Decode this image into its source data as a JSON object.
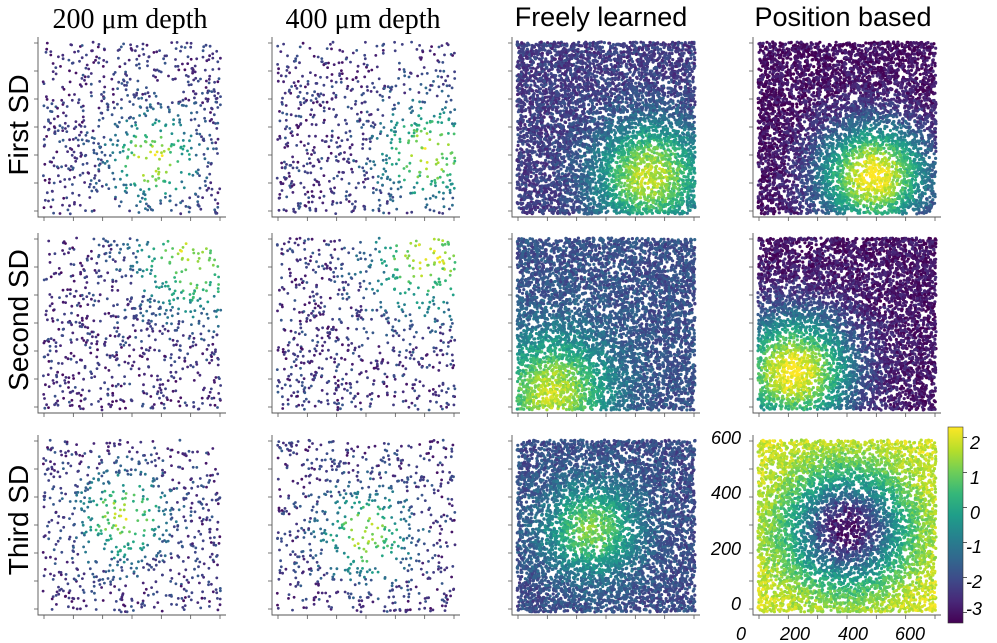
{
  "figure": {
    "column_titles": [
      "200 μm depth",
      "400 μm depth",
      "Freely learned",
      "Position based"
    ],
    "row_labels": [
      "First SD",
      "Second SD",
      "Third SD"
    ]
  },
  "chart_data": [
    {
      "type": "scatter",
      "id": "r1c1",
      "row": "First SD",
      "column": "200 μm depth",
      "n_points": 720,
      "color_by": "value",
      "pattern": "blob",
      "peak_xy": [
        0.62,
        0.32
      ],
      "spread": 0.22,
      "background": -2.4,
      "peak": 2.0
    },
    {
      "type": "scatter",
      "id": "r1c2",
      "row": "First SD",
      "column": "400 μm depth",
      "n_points": 720,
      "color_by": "value",
      "pattern": "blob",
      "peak_xy": [
        0.85,
        0.35
      ],
      "spread": 0.25,
      "background": -2.4,
      "peak": 1.8
    },
    {
      "type": "scatter",
      "id": "r1c3",
      "row": "First SD",
      "column": "Freely learned",
      "n_points": 5600,
      "color_by": "value",
      "pattern": "blob",
      "peak_xy": [
        0.75,
        0.22
      ],
      "spread": 0.3,
      "background": -2.3,
      "peak": 1.8
    },
    {
      "type": "scatter",
      "id": "r1c4",
      "row": "First SD",
      "column": "Position based",
      "n_points": 5600,
      "color_by": "value",
      "pattern": "blob",
      "peak_xy": [
        0.65,
        0.22
      ],
      "spread": 0.3,
      "background": -3.1,
      "peak": 2.4
    },
    {
      "type": "scatter",
      "id": "r2c1",
      "row": "Second SD",
      "column": "200 μm depth",
      "n_points": 720,
      "color_by": "value",
      "pattern": "blob",
      "peak_xy": [
        0.85,
        0.88
      ],
      "spread": 0.3,
      "background": -2.5,
      "peak": 1.8
    },
    {
      "type": "scatter",
      "id": "r2c2",
      "row": "Second SD",
      "column": "400 μm depth",
      "n_points": 720,
      "color_by": "value",
      "pattern": "blob",
      "peak_xy": [
        0.85,
        0.9
      ],
      "spread": 0.3,
      "background": -2.4,
      "peak": 1.8
    },
    {
      "type": "scatter",
      "id": "r2c3",
      "row": "Second SD",
      "column": "Freely learned",
      "n_points": 5600,
      "color_by": "value",
      "pattern": "blob",
      "peak_xy": [
        0.2,
        0.1
      ],
      "spread": 0.32,
      "background": -1.9,
      "peak": 1.8
    },
    {
      "type": "scatter",
      "id": "r2c4",
      "row": "Second SD",
      "column": "Position based",
      "n_points": 5600,
      "color_by": "value",
      "pattern": "blob",
      "peak_xy": [
        0.2,
        0.22
      ],
      "spread": 0.32,
      "background": -3.0,
      "peak": 2.4
    },
    {
      "type": "scatter",
      "id": "r3c1",
      "row": "Third SD",
      "column": "200 μm depth",
      "n_points": 720,
      "color_by": "value",
      "pattern": "ring",
      "peak_xy": [
        0.45,
        0.55
      ],
      "spread": 0.25,
      "background": -2.4,
      "peak": 1.6
    },
    {
      "type": "scatter",
      "id": "r3c2",
      "row": "Third SD",
      "column": "400 μm depth",
      "n_points": 720,
      "color_by": "value",
      "pattern": "ring",
      "peak_xy": [
        0.5,
        0.45
      ],
      "spread": 0.25,
      "background": -2.4,
      "peak": 1.6
    },
    {
      "type": "scatter",
      "id": "r3c3",
      "row": "Third SD",
      "column": "Freely learned",
      "n_points": 5600,
      "color_by": "value",
      "pattern": "ring",
      "peak_xy": [
        0.42,
        0.48
      ],
      "spread": 0.28,
      "background": -2.0,
      "peak": 1.2
    },
    {
      "type": "scatter",
      "id": "r3c4",
      "row": "Third SD",
      "column": "Position based",
      "n_points": 5600,
      "color_by": "value",
      "pattern": "dip",
      "peak_xy": [
        0.5,
        0.48
      ],
      "spread": 0.4,
      "background": -3.1,
      "peak": 2.0,
      "xlim": [
        0,
        650
      ],
      "ylim": [
        0,
        620
      ],
      "xticks": [
        0,
        200,
        400,
        600
      ],
      "yticks": [
        0,
        200,
        400,
        600
      ],
      "xtick_labels": [
        "0",
        "200",
        "400",
        "600"
      ],
      "ytick_labels": [
        "0",
        "200",
        "400",
        "600"
      ]
    }
  ],
  "colorbar": {
    "colormap": "viridis",
    "min": -3.3,
    "max": 2.3,
    "ticks": [
      2,
      1,
      0,
      -1,
      -2,
      -3
    ],
    "tick_labels": [
      "2",
      "1",
      "0",
      "-1",
      "-2",
      "-3"
    ]
  },
  "colors": {
    "viridis": [
      "#440154",
      "#482878",
      "#3e4a89",
      "#31688e",
      "#26828e",
      "#1f9e89",
      "#35b779",
      "#6ece58",
      "#b5de2b",
      "#fde725"
    ]
  }
}
